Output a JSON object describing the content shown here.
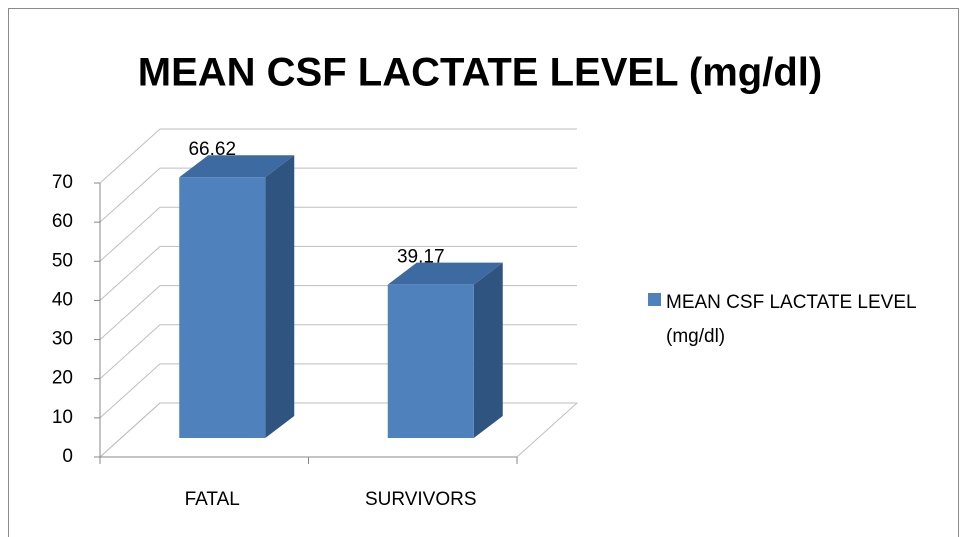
{
  "chart_data": {
    "type": "bar3d",
    "title": "MEAN CSF LACTATE LEVEL (mg/dl)",
    "categories": [
      "FATAL",
      "SURVIVORS"
    ],
    "series": [
      {
        "name": "MEAN CSF LACTATE LEVEL (mg/dl)",
        "color": "#4f81bd",
        "values": [
          66.62,
          39.17
        ]
      }
    ],
    "ylim": [
      0,
      70
    ],
    "yticks": [
      0,
      10,
      20,
      30,
      40,
      50,
      60,
      70
    ],
    "grid": true,
    "legend": "right"
  }
}
